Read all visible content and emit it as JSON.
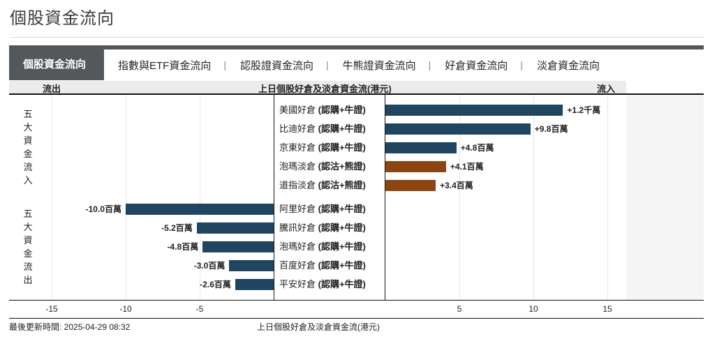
{
  "page": {
    "title": "個股資金流向"
  },
  "tabs": [
    {
      "label": "個股資金流向",
      "active": true
    },
    {
      "label": "指數與ETF資金流向",
      "active": false
    },
    {
      "label": "認股證資金流向",
      "active": false
    },
    {
      "label": "牛熊證資金流向",
      "active": false
    },
    {
      "label": "好倉資金流向",
      "active": false
    },
    {
      "label": "淡倉資金流向",
      "active": false
    }
  ],
  "tab_separator": "|",
  "header": {
    "outflow": "流出",
    "center": "上日個股好倉及淡倉資金流(港元)",
    "inflow": "流入"
  },
  "groups": {
    "inflow_label": [
      "五",
      "大",
      "資",
      "金",
      "流",
      "入"
    ],
    "outflow_label": [
      "五",
      "大",
      "資",
      "金",
      "流",
      "出"
    ]
  },
  "colors": {
    "bull": "#1f4560",
    "bear": "#8b4513"
  },
  "chart_data": {
    "type": "bar",
    "orientation": "horizontal-diverging",
    "title": "上日個股好倉及淡倉資金流(港元)",
    "xlabel": "",
    "ylabel": "",
    "xlim": [
      -15,
      15
    ],
    "x_ticks": [
      -15,
      -10,
      -5,
      5,
      10,
      15
    ],
    "unit": "百萬港元",
    "series": [
      {
        "name": "五大資金流入",
        "items": [
          {
            "name": "美國好倉",
            "type": "(認購+牛證)",
            "value": 12,
            "label": "+1.2千萬",
            "kind": "bull"
          },
          {
            "name": "比迪好倉",
            "type": "(認購+牛證)",
            "value": 9.8,
            "label": "+9.8百萬",
            "kind": "bull"
          },
          {
            "name": "京東好倉",
            "type": "(認購+牛證)",
            "value": 4.8,
            "label": "+4.8百萬",
            "kind": "bull"
          },
          {
            "name": "泡瑪淡倉",
            "type": "(認沽+熊證)",
            "value": 4.1,
            "label": "+4.1百萬",
            "kind": "bear"
          },
          {
            "name": "道指淡倉",
            "type": "(認沽+熊證)",
            "value": 3.4,
            "label": "+3.4百萬",
            "kind": "bear"
          }
        ]
      },
      {
        "name": "五大資金流出",
        "items": [
          {
            "name": "阿里好倉",
            "type": "(認購+牛證)",
            "value": -10.0,
            "label": "-10.0百萬",
            "kind": "bull"
          },
          {
            "name": "騰訊好倉",
            "type": "(認購+牛證)",
            "value": -5.2,
            "label": "-5.2百萬",
            "kind": "bull"
          },
          {
            "name": "泡瑪好倉",
            "type": "(認購+牛證)",
            "value": -4.8,
            "label": "-4.8百萬",
            "kind": "bull"
          },
          {
            "name": "百度好倉",
            "type": "(認購+牛證)",
            "value": -3.0,
            "label": "-3.0百萬",
            "kind": "bull"
          },
          {
            "name": "平安好倉",
            "type": "(認購+牛證)",
            "value": -2.6,
            "label": "-2.6百萬",
            "kind": "bull"
          }
        ]
      }
    ]
  },
  "footer": {
    "updated": "最後更新時間: 2025-04-29 08:32",
    "caption": "上日個股好倉及淡倉資金流(港元)"
  }
}
